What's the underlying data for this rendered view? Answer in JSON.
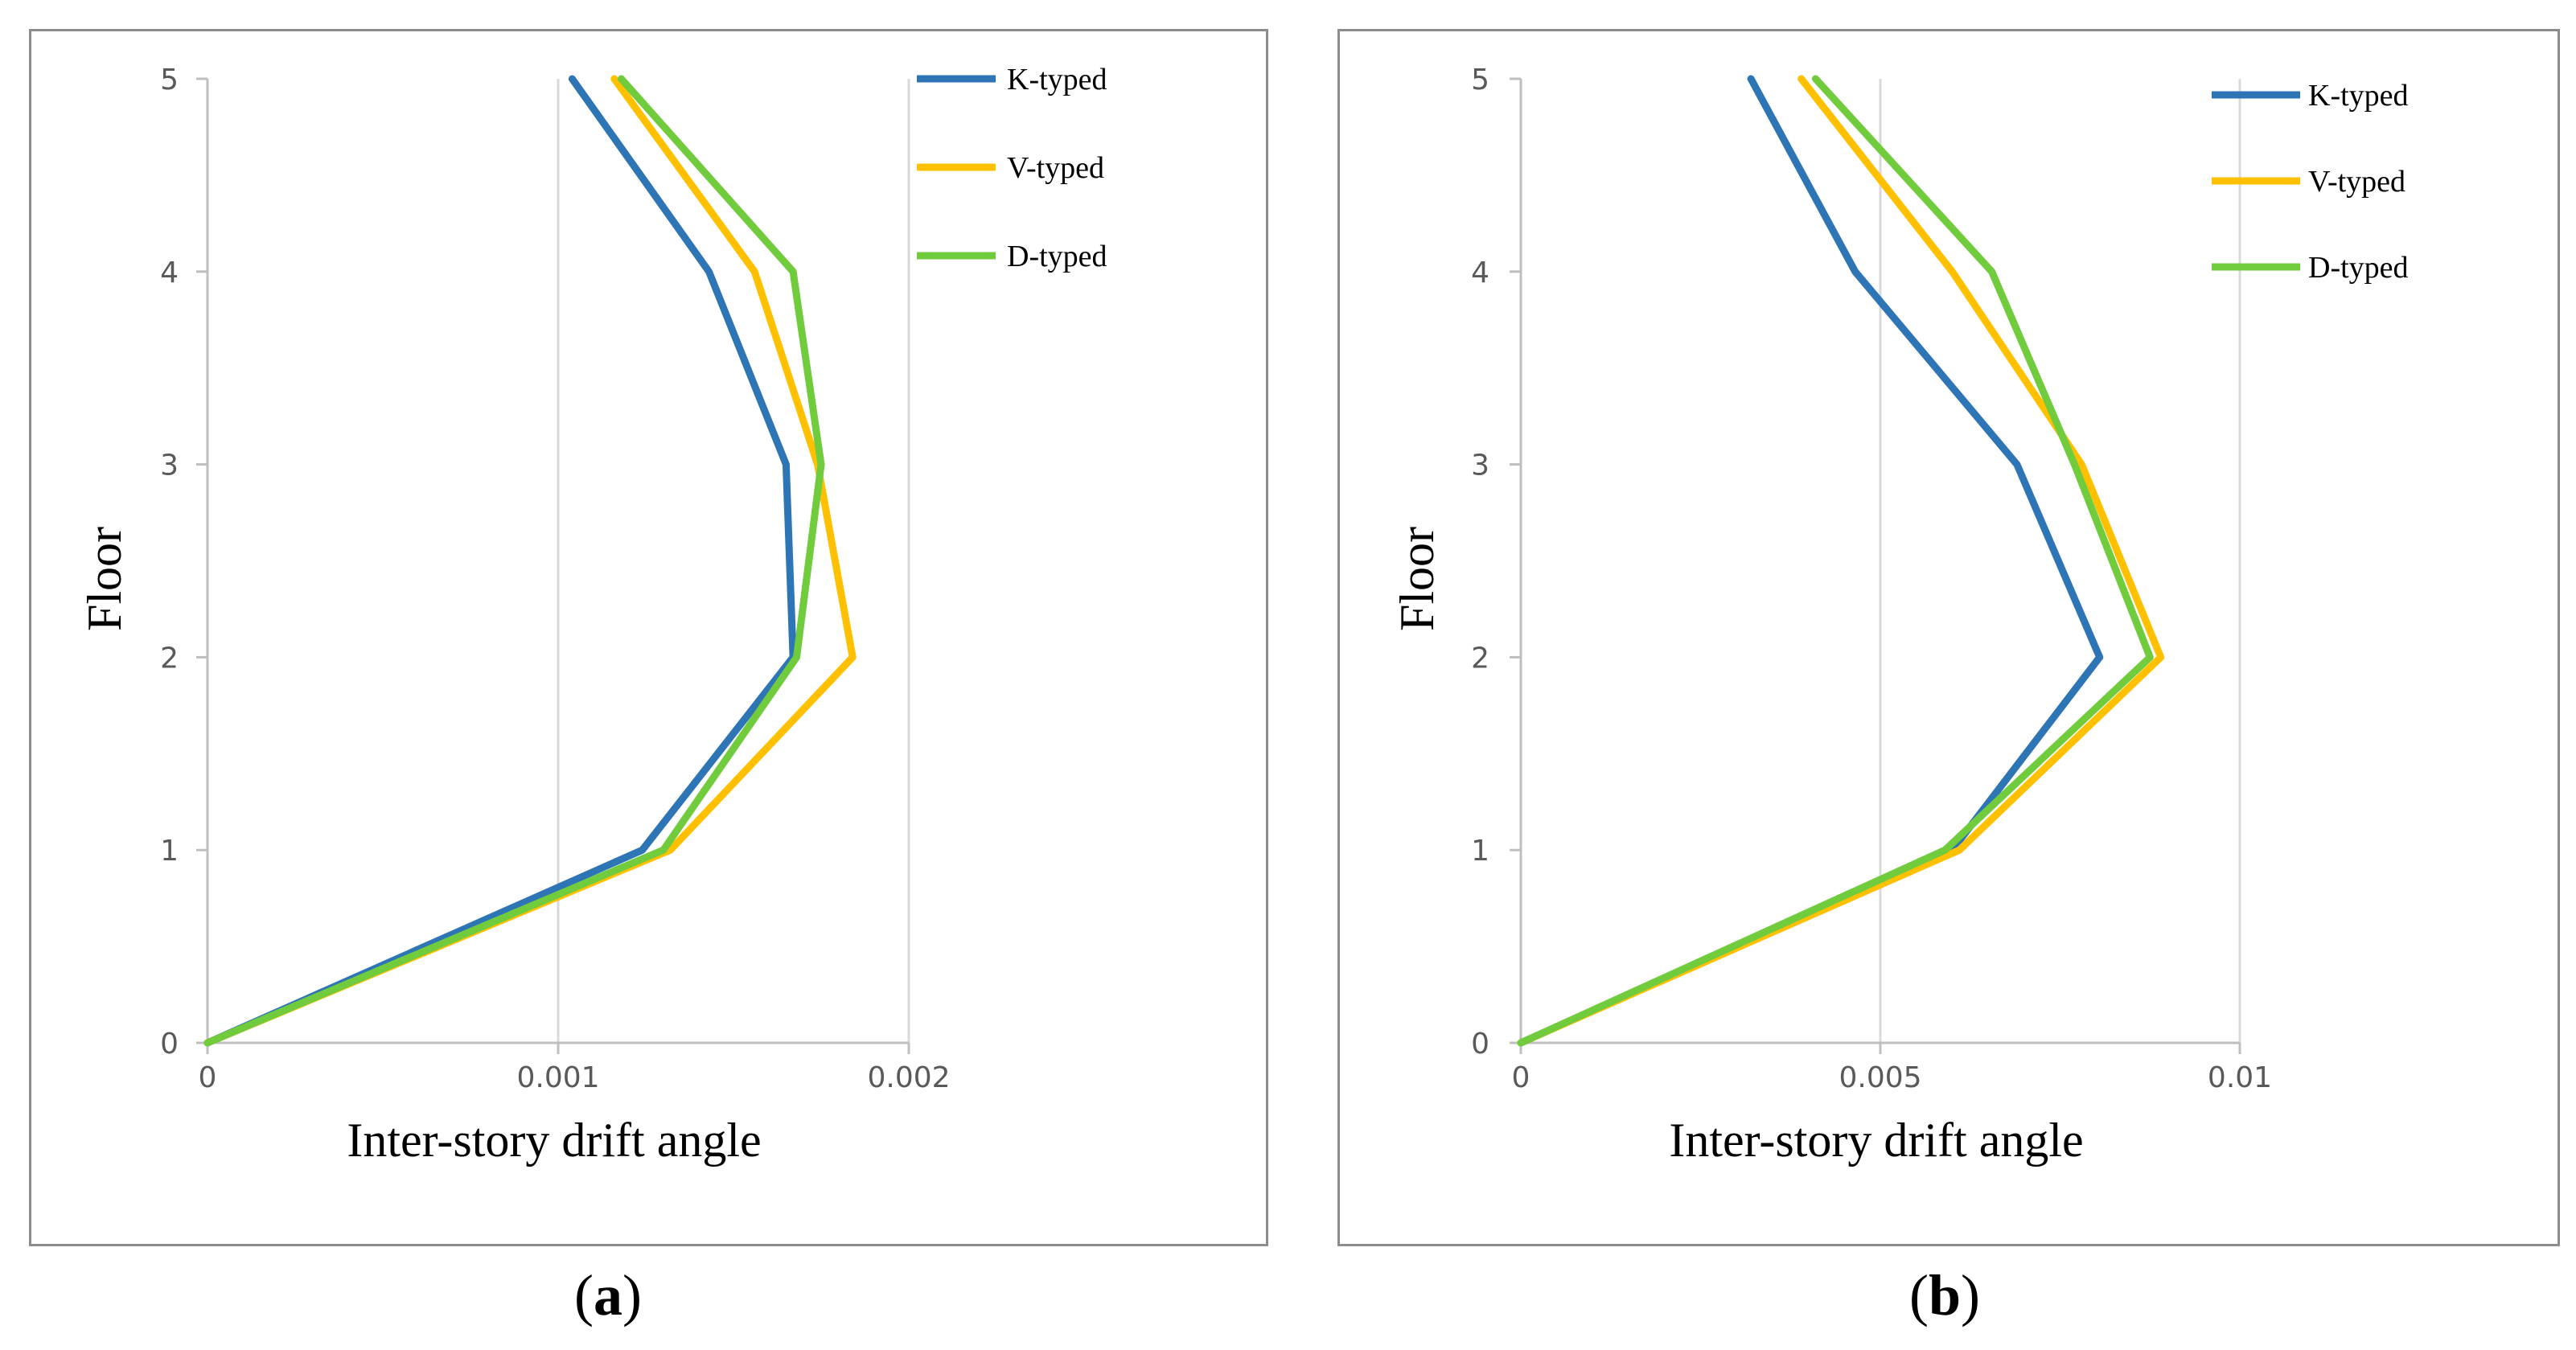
{
  "chart_data": [
    {
      "type": "line",
      "caption_open": "(",
      "caption_label": "a",
      "caption_close": ")",
      "xlabel": "Inter-story drift angle",
      "ylabel": "Floor",
      "xlim": [
        0,
        0.002
      ],
      "ylim": [
        0,
        5
      ],
      "xticks": [
        0,
        0.001,
        0.002
      ],
      "xtick_labels": [
        "0",
        "0.001",
        "0.002"
      ],
      "yticks": [
        0,
        1,
        2,
        3,
        4,
        5
      ],
      "ytick_labels": [
        "0",
        "1",
        "2",
        "3",
        "4",
        "5"
      ],
      "gridlines": "vertical",
      "legend_position": "top-right",
      "y": [
        0,
        1,
        2,
        3,
        4,
        5
      ],
      "series": [
        {
          "name": "K-typed",
          "color": "#2e75b6",
          "values": [
            0,
            0.00124,
            0.00167,
            0.00165,
            0.00143,
            0.00104
          ]
        },
        {
          "name": "V-typed",
          "color": "#ffc000",
          "values": [
            0,
            0.00132,
            0.00184,
            0.00174,
            0.00156,
            0.00116
          ]
        },
        {
          "name": "D-typed",
          "color": "#70cc3c",
          "values": [
            0,
            0.0013,
            0.00168,
            0.00175,
            0.00167,
            0.00118
          ]
        }
      ]
    },
    {
      "type": "line",
      "caption_open": "(",
      "caption_label": "b",
      "caption_close": ")",
      "xlabel": "Inter-story drift angle",
      "ylabel": "Floor",
      "xlim": [
        0,
        0.01
      ],
      "ylim": [
        0,
        5
      ],
      "xticks": [
        0,
        0.005,
        0.01
      ],
      "xtick_labels": [
        "0",
        "0.005",
        "0.01"
      ],
      "yticks": [
        0,
        1,
        2,
        3,
        4,
        5
      ],
      "ytick_labels": [
        "0",
        "1",
        "2",
        "3",
        "4",
        "5"
      ],
      "gridlines": "vertical",
      "legend_position": "top-right",
      "y": [
        0,
        1,
        2,
        3,
        4,
        5
      ],
      "series": [
        {
          "name": "K-typed",
          "color": "#2e75b6",
          "values": [
            0,
            0.006,
            0.00805,
            0.0069,
            0.00465,
            0.0032
          ]
        },
        {
          "name": "V-typed",
          "color": "#ffc000",
          "values": [
            0,
            0.0061,
            0.0089,
            0.0078,
            0.006,
            0.0039
          ]
        },
        {
          "name": "D-typed",
          "color": "#70cc3c",
          "values": [
            0,
            0.0059,
            0.00875,
            0.0077,
            0.00655,
            0.0041
          ]
        }
      ]
    }
  ]
}
